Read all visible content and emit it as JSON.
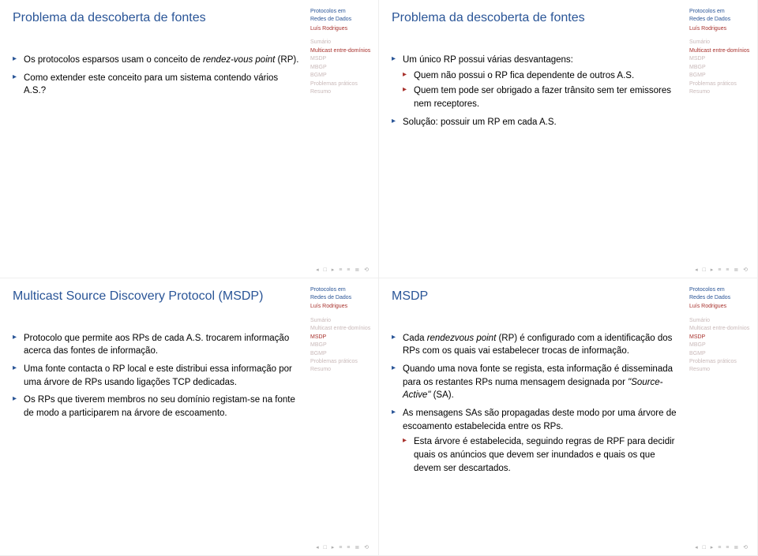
{
  "colors": {
    "title": "#2a5597",
    "bullet1": "#2a5597",
    "bullet2": "#a8322d",
    "sidebarBrand": "#2a5597",
    "author": "#a8322d",
    "navActive": "#a8322d",
    "navInactive": "#c9b9b9",
    "navfoot": "#888"
  },
  "slides": [
    {
      "title": "Problema da descoberta de fontes",
      "activeIdx": 1,
      "bullets": [
        {
          "html": "Os protocolos esparsos usam o conceito de <span class=\"italic\">rendez-vous point</span> (RP)."
        },
        {
          "html": "Como extender este conceito para um sistema contendo vários A.S.?"
        }
      ]
    },
    {
      "title": "Problema da descoberta de fontes",
      "activeIdx": 1,
      "bullets": [
        {
          "html": "Um único RP possui várias desvantagens:",
          "sub": [
            {
              "html": "Quem não possui o RP fica dependente de outros A.S."
            },
            {
              "html": "Quem tem pode ser obrigado a fazer trânsito sem ter emissores nem receptores."
            }
          ]
        },
        {
          "html": "Solução: possuir um RP em cada A.S."
        }
      ]
    },
    {
      "title": "Multicast Source Discovery Protocol (MSDP)",
      "activeIdx": 2,
      "bullets": [
        {
          "html": "Protocolo que permite aos RPs de cada A.S. trocarem informação acerca das fontes de informação."
        },
        {
          "html": "Uma fonte contacta o RP local e este distribui essa informação por uma árvore de RPs usando ligações TCP dedicadas."
        },
        {
          "html": "Os RPs que tiverem membros no seu domínio registam-se na fonte de modo a participarem na árvore de escoamento."
        }
      ]
    },
    {
      "title": "MSDP",
      "activeIdx": 2,
      "bullets": [
        {
          "html": "Cada <span class=\"italic\">rendezvous point</span> (RP) é configurado com a identificação dos RPs com os quais vai estabelecer trocas de informação."
        },
        {
          "html": "Quando uma nova fonte se regista, esta informação é disseminada para os restantes RPs numa mensagem designada por <span class=\"italic\">\"Source-Active\"</span> (SA)."
        },
        {
          "html": "As mensagens SAs são propagadas deste modo por uma árvore de escoamento estabelecida entre os RPs.",
          "sub": [
            {
              "html": "Esta árvore é estabelecida, seguindo regras de RPF para decidir quais os anúncios que devem ser inundados e quais os que devem ser descartados."
            }
          ]
        }
      ]
    }
  ],
  "sidebar": {
    "brand1": "Protocolos em",
    "brand2": "Redes de Dados",
    "author": "Luís Rodrigues",
    "items": [
      "Sumário",
      "Multicast entre-domínios",
      "MSDP",
      "MBGP",
      "BGMP",
      "Problemas práticos",
      "Resumo"
    ]
  },
  "navfoot": "◂  □  ▸  ≡  ≡   ≣   ⟲"
}
